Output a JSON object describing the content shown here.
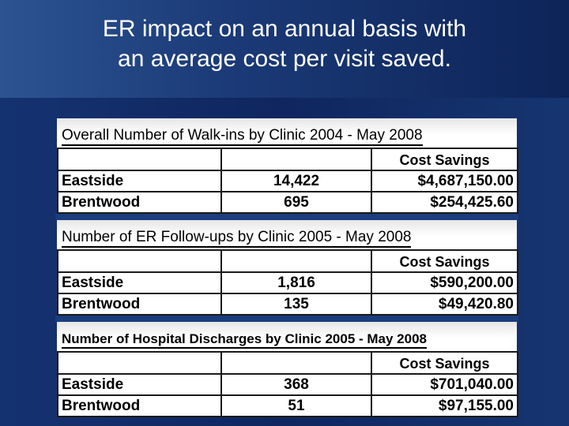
{
  "slide": {
    "title_line1": "ER impact on an annual basis with",
    "title_line2": "an average cost per visit saved."
  },
  "tables": [
    {
      "caption": "Overall Number of Walk-ins by Clinic 2004 - May 2008",
      "cost_header": "Cost Savings",
      "rows": [
        {
          "clinic": "Eastside",
          "count": "14,422",
          "savings": "$4,687,150.00"
        },
        {
          "clinic": "Brentwood",
          "count": "695",
          "savings": "$254,425.60"
        }
      ]
    },
    {
      "caption": "Number of ER Follow-ups by Clinic 2005 - May 2008",
      "cost_header": "Cost Savings",
      "rows": [
        {
          "clinic": "Eastside",
          "count": "1,816",
          "savings": "$590,200.00"
        },
        {
          "clinic": "Brentwood",
          "count": "135",
          "savings": "$49,420.80"
        }
      ]
    },
    {
      "caption": "Number of Hospital Discharges by Clinic 2005 - May 2008",
      "cost_header": "Cost Savings",
      "rows": [
        {
          "clinic": "Eastside",
          "count": "368",
          "savings": "$701,040.00"
        },
        {
          "clinic": "Brentwood",
          "count": "51",
          "savings": "$97,155.00"
        }
      ]
    }
  ]
}
